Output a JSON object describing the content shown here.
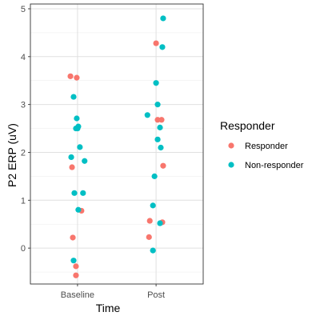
{
  "chart_data": {
    "type": "scatter",
    "xlabel": "Time",
    "ylabel": "P2 ERP (uV)",
    "categories": [
      "Baseline",
      "Post"
    ],
    "ylim": [
      -0.75,
      5.1
    ],
    "yticks": [
      0,
      1,
      2,
      3,
      4,
      5
    ],
    "grid": true,
    "legend": {
      "title": "Responder",
      "position": "right",
      "entries": [
        "Responder",
        "Non-responder"
      ]
    },
    "colors": {
      "Responder": "#F8766D",
      "Non-responder": "#00BFC4"
    },
    "series": [
      {
        "name": "Responder",
        "points": [
          {
            "x": "Baseline",
            "jitter": -0.09,
            "y": 3.59
          },
          {
            "x": "Baseline",
            "jitter": -0.01,
            "y": 3.56
          },
          {
            "x": "Baseline",
            "jitter": -0.07,
            "y": 1.69
          },
          {
            "x": "Baseline",
            "jitter": 0.05,
            "y": 0.78
          },
          {
            "x": "Baseline",
            "jitter": -0.06,
            "y": 0.22
          },
          {
            "x": "Baseline",
            "jitter": -0.02,
            "y": -0.38
          },
          {
            "x": "Baseline",
            "jitter": -0.02,
            "y": -0.57
          },
          {
            "x": "Post",
            "jitter": 0.0,
            "y": 4.28
          },
          {
            "x": "Post",
            "jitter": 0.02,
            "y": 2.68
          },
          {
            "x": "Post",
            "jitter": 0.07,
            "y": 2.68
          },
          {
            "x": "Post",
            "jitter": 0.09,
            "y": 1.72
          },
          {
            "x": "Post",
            "jitter": -0.08,
            "y": 0.57
          },
          {
            "x": "Post",
            "jitter": 0.08,
            "y": 0.54
          },
          {
            "x": "Post",
            "jitter": -0.09,
            "y": 0.23
          }
        ]
      },
      {
        "name": "Non-responder",
        "points": [
          {
            "x": "Baseline",
            "jitter": -0.05,
            "y": 3.16
          },
          {
            "x": "Baseline",
            "jitter": -0.01,
            "y": 2.71
          },
          {
            "x": "Baseline",
            "jitter": -0.02,
            "y": 2.5
          },
          {
            "x": "Baseline",
            "jitter": 0.0,
            "y": 2.5
          },
          {
            "x": "Baseline",
            "jitter": 0.01,
            "y": 2.54
          },
          {
            "x": "Baseline",
            "jitter": 0.03,
            "y": 2.11
          },
          {
            "x": "Baseline",
            "jitter": -0.08,
            "y": 1.9
          },
          {
            "x": "Baseline",
            "jitter": 0.09,
            "y": 1.82
          },
          {
            "x": "Baseline",
            "jitter": -0.04,
            "y": 1.15
          },
          {
            "x": "Baseline",
            "jitter": 0.07,
            "y": 1.15
          },
          {
            "x": "Baseline",
            "jitter": 0.01,
            "y": 0.8
          },
          {
            "x": "Baseline",
            "jitter": -0.05,
            "y": -0.26
          },
          {
            "x": "Post",
            "jitter": 0.09,
            "y": 4.8
          },
          {
            "x": "Post",
            "jitter": 0.08,
            "y": 4.2
          },
          {
            "x": "Post",
            "jitter": 0.0,
            "y": 3.45
          },
          {
            "x": "Post",
            "jitter": 0.02,
            "y": 3.0
          },
          {
            "x": "Post",
            "jitter": -0.11,
            "y": 2.78
          },
          {
            "x": "Post",
            "jitter": 0.05,
            "y": 2.52
          },
          {
            "x": "Post",
            "jitter": 0.02,
            "y": 2.27
          },
          {
            "x": "Post",
            "jitter": 0.06,
            "y": 2.1
          },
          {
            "x": "Post",
            "jitter": -0.02,
            "y": 1.5
          },
          {
            "x": "Post",
            "jitter": -0.04,
            "y": 0.89
          },
          {
            "x": "Post",
            "jitter": 0.05,
            "y": 0.52
          },
          {
            "x": "Post",
            "jitter": -0.04,
            "y": -0.05
          }
        ]
      }
    ]
  }
}
